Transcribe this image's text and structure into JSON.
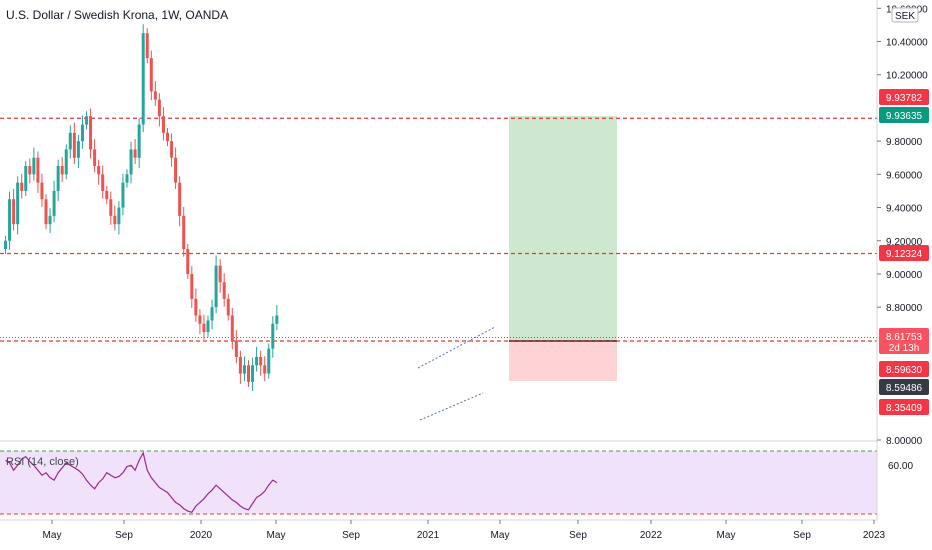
{
  "header": {
    "title": "U.S. Dollar / Swedish Krona, 1W, OANDA"
  },
  "price_axis": {
    "currency": "SEK",
    "ticks": [
      "10.60000",
      "10.40000",
      "10.20000",
      "9.80000",
      "9.60000",
      "9.40000",
      "9.20000",
      "9.00000",
      "8.80000",
      "8.00000"
    ]
  },
  "rsi": {
    "label": "RSI (14, close)",
    "tick": "60.00"
  },
  "time_axis": {
    "labels": [
      "May",
      "Sep",
      "2020",
      "May",
      "Sep",
      "2021",
      "May",
      "Sep",
      "2022",
      "May",
      "Sep",
      "2023"
    ]
  },
  "price_labels": [
    {
      "text": "9.93782",
      "bg": "#f23645"
    },
    {
      "text": "9.93635",
      "bg": "#089981"
    },
    {
      "text": "9.12324",
      "bg": "#f23645"
    },
    {
      "text": "8.61753",
      "sub": "2d 13h",
      "bg": "#f7525f"
    },
    {
      "text": "8.59630",
      "bg": "#f23645"
    },
    {
      "text": "8.59486",
      "bg": "#363a45"
    },
    {
      "text": "8.35409",
      "bg": "#f23645"
    }
  ],
  "colors": {
    "up": "#26a69a",
    "down": "#ef5350",
    "hline": "#e53935",
    "rsi": "#9c2790",
    "target": "#c8e6c9",
    "stop": "#ffcdd2"
  },
  "chart_data": {
    "type": "candlestick",
    "instrument": "USD/SEK",
    "timeframe": "1W",
    "ylim": [
      8.0,
      10.65
    ],
    "horizontal_levels": [
      9.93782,
      9.12324,
      8.5963
    ],
    "position": {
      "entry": 8.6,
      "target": 9.93635,
      "stop": 8.35409
    },
    "price_path": [
      9.2,
      9.45,
      9.3,
      9.55,
      9.5,
      9.65,
      9.6,
      9.7,
      9.55,
      9.45,
      9.3,
      9.35,
      9.5,
      9.65,
      9.6,
      9.75,
      9.85,
      9.7,
      9.8,
      9.9,
      9.95,
      9.75,
      9.65,
      9.6,
      9.5,
      9.45,
      9.35,
      9.3,
      9.4,
      9.55,
      9.6,
      9.75,
      9.7,
      9.9,
      10.45,
      10.3,
      10.1,
      10.05,
      9.95,
      9.85,
      9.8,
      9.7,
      9.55,
      9.35,
      9.15,
      9.0,
      8.85,
      8.75,
      8.7,
      8.65,
      8.72,
      8.8,
      9.05,
      8.95,
      8.85,
      8.75,
      8.6,
      8.5,
      8.4,
      8.45,
      8.35,
      8.45,
      8.5,
      8.45,
      8.4,
      8.55,
      8.7,
      8.75
    ],
    "rsi_path": [
      70,
      68,
      62,
      66,
      71,
      73,
      69,
      66,
      62,
      58,
      60,
      56,
      54,
      60,
      64,
      68,
      66,
      64,
      62,
      59,
      54,
      50,
      47,
      52,
      55,
      60,
      58,
      56,
      57,
      60,
      65,
      66,
      62,
      70,
      76,
      62,
      56,
      52,
      48,
      46,
      44,
      40,
      36,
      34,
      31,
      29,
      28,
      33,
      36,
      39,
      43,
      46,
      50,
      47,
      44,
      41,
      38,
      36,
      33,
      31,
      30,
      35,
      40,
      42,
      45,
      50,
      54,
      52
    ]
  }
}
